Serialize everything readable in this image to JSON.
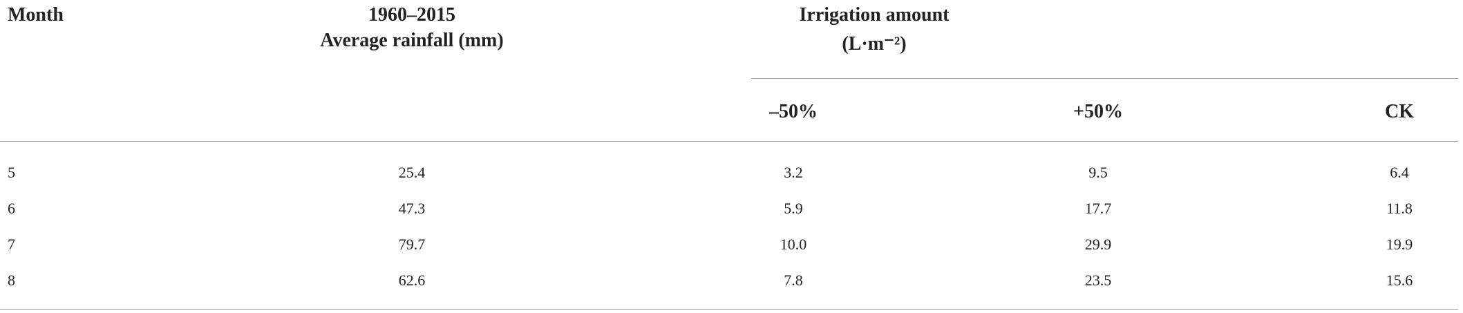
{
  "table": {
    "header": [
      "Month",
      "1960–2015",
      "Average rainfall (mm)",
      "Irrigation amount",
      "(L·m⁻²)"
    ],
    "subheader": [
      "–50%",
      "+50%",
      "CK"
    ],
    "rows": [
      [
        "5",
        "25.4",
        "3.2",
        "9.5",
        "6.4"
      ],
      [
        "6",
        "47.3",
        "5.9",
        "17.7",
        "11.8"
      ],
      [
        "7",
        "79.7",
        "10.0",
        "29.9",
        "19.9"
      ],
      [
        "8",
        "62.6",
        "7.8",
        "23.5",
        "15.6"
      ]
    ]
  }
}
